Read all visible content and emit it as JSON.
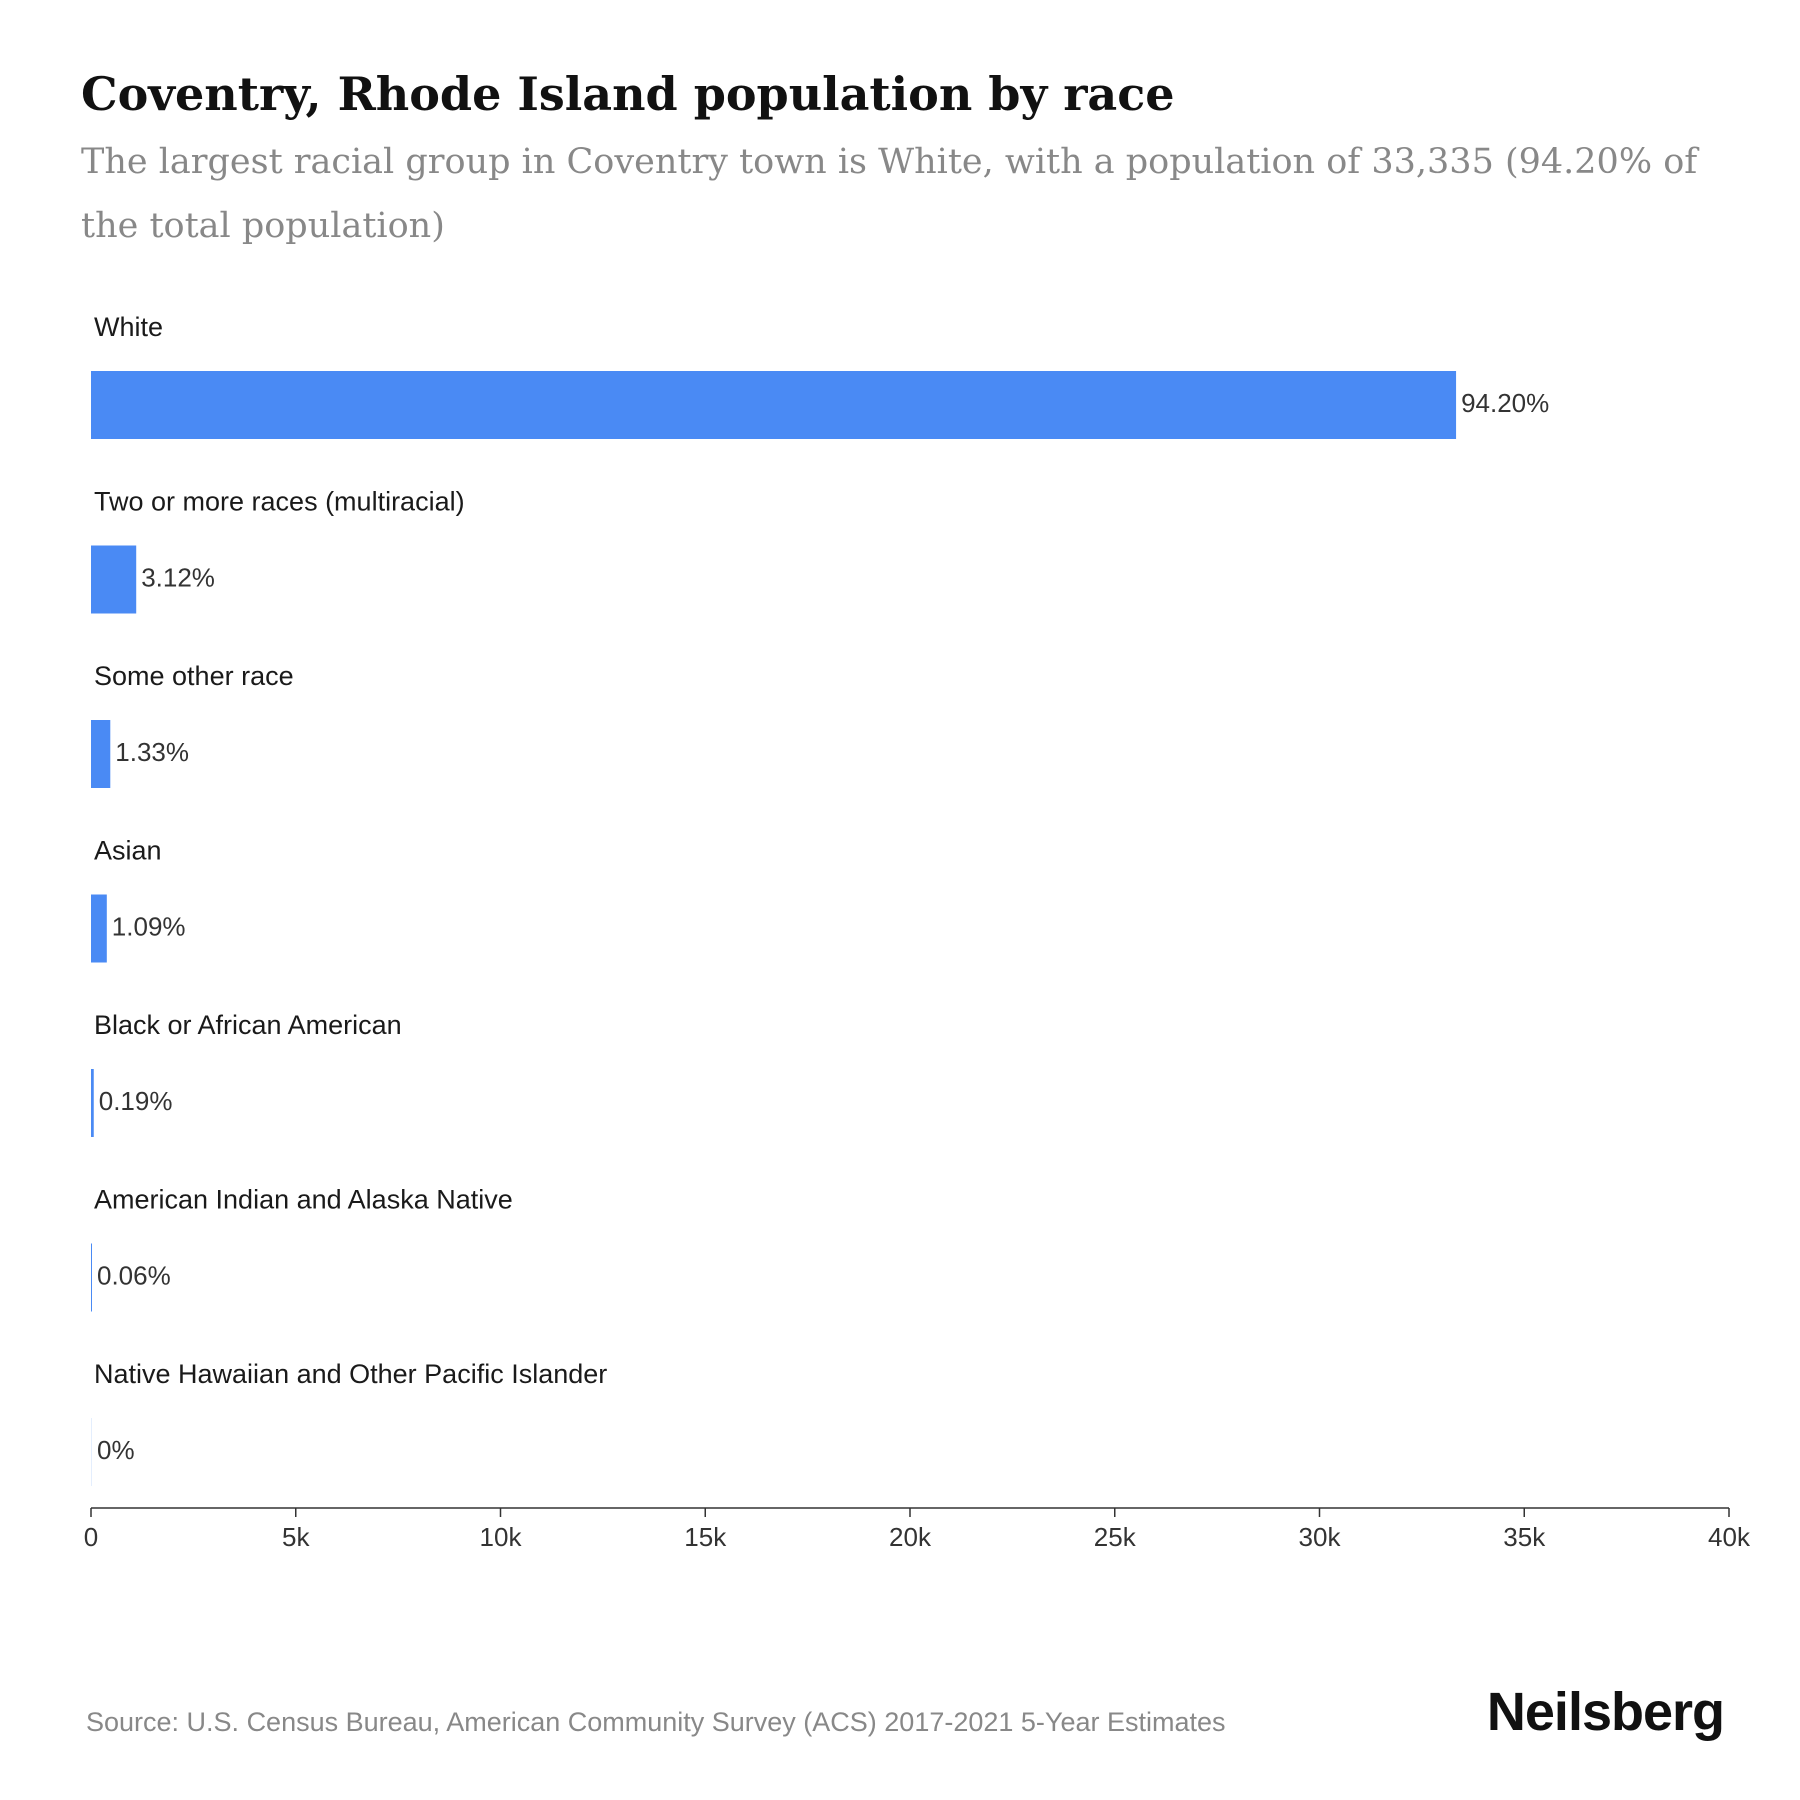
{
  "title": "Coventry, Rhode Island population by race",
  "subtitle": "The largest racial group in Coventry town is White, with a population of 33,335 (94.20% of the total population)",
  "source": "Source: U.S. Census Bureau, American Community Survey (ACS) 2017-2021 5-Year Estimates",
  "brand": "Neilsberg",
  "colors": {
    "bar": "#4a8af4",
    "axis": "#333333"
  },
  "chart_data": {
    "type": "bar",
    "orientation": "horizontal",
    "categories": [
      "White",
      "Two or more races (multiracial)",
      "Some other race",
      "Asian",
      "Black or African American",
      "American Indian and Alaska Native",
      "Native Hawaiian and Other Pacific Islander"
    ],
    "values": [
      33335,
      1104,
      471,
      386,
      67,
      21,
      0
    ],
    "value_labels": [
      "94.20%",
      "3.12%",
      "1.33%",
      "1.09%",
      "0.19%",
      "0.06%",
      "0%"
    ],
    "xlim": [
      0,
      40000
    ],
    "x_ticks": [
      0,
      5000,
      10000,
      15000,
      20000,
      25000,
      30000,
      35000,
      40000
    ],
    "x_tick_labels": [
      "0",
      "5k",
      "10k",
      "15k",
      "20k",
      "25k",
      "30k",
      "35k",
      "40k"
    ],
    "grid": false,
    "legend": "none"
  }
}
